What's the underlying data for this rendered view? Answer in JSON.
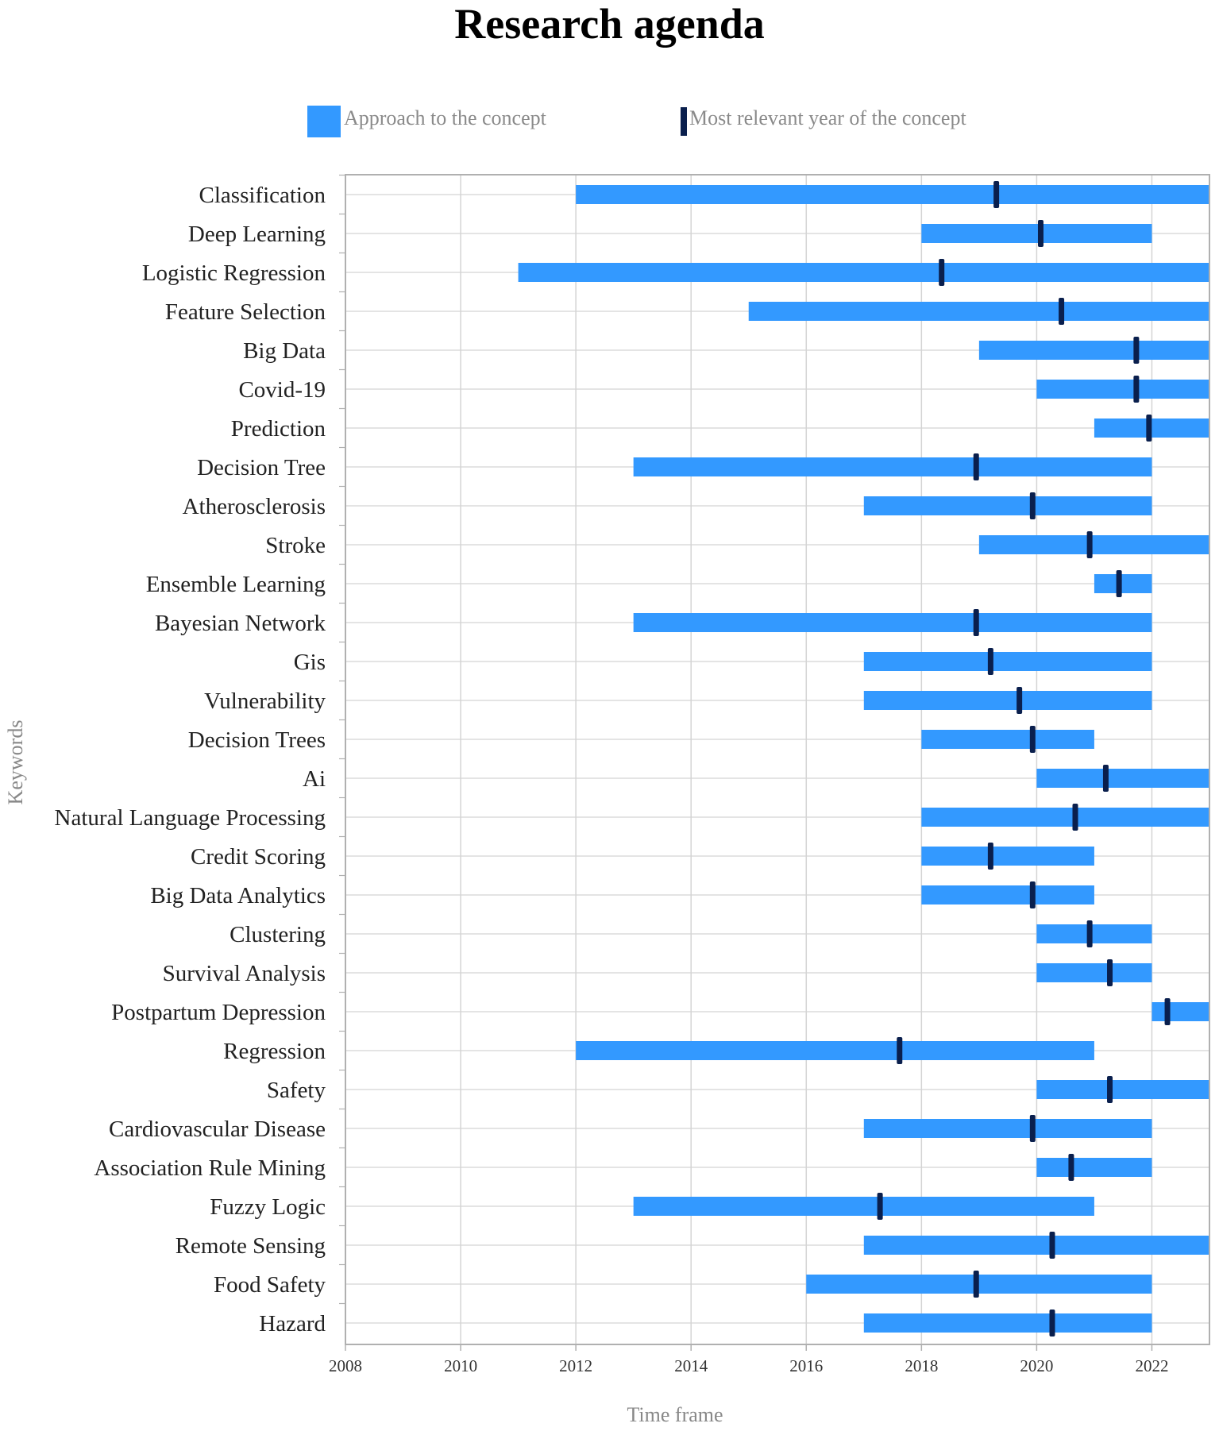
{
  "colors": {
    "bar": "#3399ff",
    "marker": "#0a1f4d",
    "grid": "#d4d4d4",
    "axis": "#b0b0b0"
  },
  "chart_data": {
    "type": "gantt",
    "title": "Research agenda",
    "xlabel": "Time frame",
    "ylabel": "Keywords",
    "xlim": [
      2008,
      2023
    ],
    "xticks": [
      2008,
      2010,
      2012,
      2014,
      2016,
      2018,
      2020,
      2022
    ],
    "legend": {
      "position": "top",
      "entries": [
        "Approach to the concept",
        "Most relevant year of the concept"
      ]
    },
    "categories": [
      "Classification",
      "Deep Learning",
      "Logistic Regression",
      "Feature Selection",
      "Big Data",
      "Covid-19",
      "Prediction",
      "Decision Tree",
      "Atherosclerosis",
      "Stroke",
      "Ensemble Learning",
      "Bayesian Network",
      "Gis",
      "Vulnerability",
      "Decision Trees",
      "Ai",
      "Natural Language Processing",
      "Credit Scoring",
      "Big Data Analytics",
      "Clustering",
      "Survival Analysis",
      "Postpartum Depression",
      "Regression",
      "Safety",
      "Cardiovascular Disease",
      "Association Rule Mining",
      "Fuzzy Logic",
      "Remote Sensing",
      "Food Safety",
      "Hazard"
    ],
    "series": [
      {
        "name": "Approach to the concept",
        "start": [
          2012,
          2018,
          2011,
          2015,
          2019,
          2020,
          2021,
          2013,
          2017,
          2019,
          2021,
          2013,
          2017,
          2017,
          2018,
          2020,
          2018,
          2018,
          2018,
          2020,
          2020,
          2022,
          2012,
          2020,
          2017,
          2020,
          2013,
          2017,
          2016,
          2017
        ],
        "end": [
          2023,
          2022,
          2023,
          2023,
          2023,
          2023,
          2023,
          2022,
          2022,
          2023,
          2022,
          2022,
          2022,
          2022,
          2021,
          2023,
          2023,
          2021,
          2021,
          2022,
          2022,
          2023,
          2021,
          2023,
          2022,
          2022,
          2021,
          2023,
          2022,
          2022
        ]
      },
      {
        "name": "Most relevant year of the concept",
        "values": [
          2019.3,
          2020.07,
          2018.35,
          2020.43,
          2021.73,
          2021.73,
          2021.95,
          2018.95,
          2019.93,
          2020.92,
          2021.43,
          2018.95,
          2019.2,
          2019.7,
          2019.93,
          2021.2,
          2020.67,
          2019.2,
          2019.93,
          2020.92,
          2021.27,
          2022.27,
          2017.62,
          2021.27,
          2019.93,
          2020.6,
          2017.28,
          2020.27,
          2018.95,
          2020.27
        ]
      }
    ]
  }
}
